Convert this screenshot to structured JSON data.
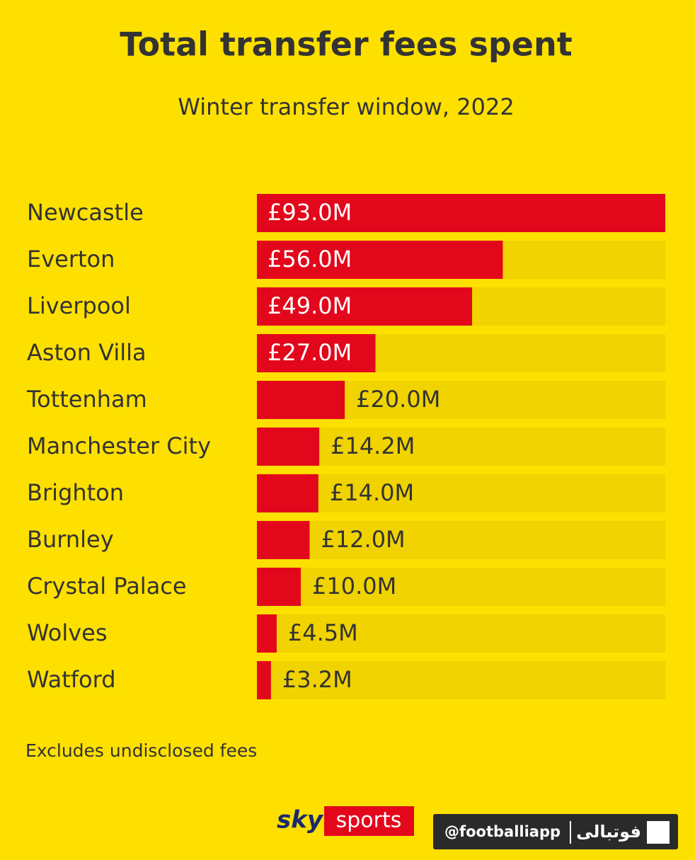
{
  "chart_data": {
    "type": "hbar",
    "title": "Total transfer fees spent",
    "subtitle": "Winter transfer window, 2022",
    "categories": [
      "Newcastle",
      "Everton",
      "Liverpool",
      "Aston Villa",
      "Tottenham",
      "Manchester City",
      "Brighton",
      "Burnley",
      "Crystal Palace",
      "Wolves",
      "Watford"
    ],
    "values": [
      93.0,
      56.0,
      49.0,
      27.0,
      20.0,
      14.2,
      14.0,
      12.0,
      10.0,
      4.5,
      3.2
    ],
    "value_labels": [
      "£93.0M",
      "£56.0M",
      "£49.0M",
      "£27.0M",
      "£20.0M",
      "£14.2M",
      "£14.0M",
      "£12.0M",
      "£10.0M",
      "£4.5M",
      "£3.2M"
    ],
    "color": "#e3071c",
    "track_color": "#f0d300",
    "xlim": [
      0,
      93.0
    ],
    "footnote": "Excludes undisclosed fees"
  },
  "logo": {
    "brand": "sky",
    "product": "sports"
  },
  "watermark": {
    "handle": "@footballiapp",
    "brand": "فوتبالی"
  }
}
